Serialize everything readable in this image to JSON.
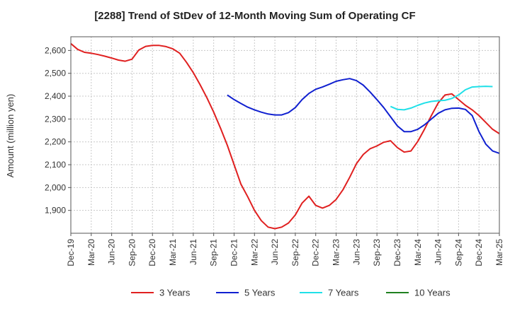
{
  "chart_data": {
    "type": "line",
    "title": "[2288]  Trend of StDev of 12-Month Moving Sum of Operating CF",
    "ylabel": "Amount (million yen)",
    "xlabel": "",
    "ylim": [
      1800,
      2660
    ],
    "yticks": [
      1900,
      2000,
      2100,
      2200,
      2300,
      2400,
      2500,
      2600
    ],
    "ytick_labels": [
      "1,900",
      "2,000",
      "2,100",
      "2,200",
      "2,300",
      "2,400",
      "2,500",
      "2,600"
    ],
    "x_start": "2019-12",
    "x_ticks": [
      "Dec-19",
      "Mar-20",
      "Jun-20",
      "Sep-20",
      "Dec-20",
      "Mar-21",
      "Jun-21",
      "Sep-21",
      "Dec-21",
      "Mar-22",
      "Jun-22",
      "Sep-22",
      "Dec-22",
      "Mar-23",
      "Jun-23",
      "Sep-23",
      "Dec-23",
      "Mar-24",
      "Jun-24",
      "Sep-24",
      "Dec-24",
      "Mar-25"
    ],
    "grid": true,
    "legend_position": "bottom",
    "series": [
      {
        "name": "3 Years",
        "color": "#e02020",
        "points": [
          [
            "2019-12",
            2630
          ],
          [
            "2020-01",
            2605
          ],
          [
            "2020-02",
            2592
          ],
          [
            "2020-03",
            2588
          ],
          [
            "2020-04",
            2582
          ],
          [
            "2020-05",
            2575
          ],
          [
            "2020-06",
            2567
          ],
          [
            "2020-07",
            2558
          ],
          [
            "2020-08",
            2553
          ],
          [
            "2020-09",
            2562
          ],
          [
            "2020-10",
            2602
          ],
          [
            "2020-11",
            2618
          ],
          [
            "2020-12",
            2622
          ],
          [
            "2021-01",
            2622
          ],
          [
            "2021-02",
            2617
          ],
          [
            "2021-03",
            2607
          ],
          [
            "2021-04",
            2588
          ],
          [
            "2021-05",
            2548
          ],
          [
            "2021-06",
            2503
          ],
          [
            "2021-07",
            2450
          ],
          [
            "2021-08",
            2393
          ],
          [
            "2021-09",
            2330
          ],
          [
            "2021-10",
            2260
          ],
          [
            "2021-11",
            2185
          ],
          [
            "2021-12",
            2100
          ],
          [
            "2022-01",
            2015
          ],
          [
            "2022-02",
            1960
          ],
          [
            "2022-03",
            1900
          ],
          [
            "2022-04",
            1855
          ],
          [
            "2022-05",
            1827
          ],
          [
            "2022-06",
            1820
          ],
          [
            "2022-07",
            1827
          ],
          [
            "2022-08",
            1845
          ],
          [
            "2022-09",
            1880
          ],
          [
            "2022-10",
            1932
          ],
          [
            "2022-11",
            1962
          ],
          [
            "2022-12",
            1922
          ],
          [
            "2023-01",
            1910
          ],
          [
            "2023-02",
            1922
          ],
          [
            "2023-03",
            1948
          ],
          [
            "2023-04",
            1990
          ],
          [
            "2023-05",
            2045
          ],
          [
            "2023-06",
            2105
          ],
          [
            "2023-07",
            2145
          ],
          [
            "2023-08",
            2170
          ],
          [
            "2023-09",
            2182
          ],
          [
            "2023-10",
            2198
          ],
          [
            "2023-11",
            2205
          ],
          [
            "2023-12",
            2175
          ],
          [
            "2024-01",
            2155
          ],
          [
            "2024-02",
            2160
          ],
          [
            "2024-03",
            2202
          ],
          [
            "2024-04",
            2256
          ],
          [
            "2024-05",
            2315
          ],
          [
            "2024-06",
            2370
          ],
          [
            "2024-07",
            2405
          ],
          [
            "2024-08",
            2410
          ],
          [
            "2024-09",
            2385
          ],
          [
            "2024-10",
            2360
          ],
          [
            "2024-11",
            2340
          ],
          [
            "2024-12",
            2315
          ],
          [
            "2025-01",
            2285
          ],
          [
            "2025-02",
            2255
          ],
          [
            "2025-03",
            2236
          ]
        ]
      },
      {
        "name": "5 Years",
        "color": "#1020d0",
        "points": [
          [
            "2021-11",
            2405
          ],
          [
            "2021-12",
            2385
          ],
          [
            "2022-01",
            2368
          ],
          [
            "2022-02",
            2352
          ],
          [
            "2022-03",
            2340
          ],
          [
            "2022-04",
            2330
          ],
          [
            "2022-05",
            2322
          ],
          [
            "2022-06",
            2318
          ],
          [
            "2022-07",
            2318
          ],
          [
            "2022-08",
            2328
          ],
          [
            "2022-09",
            2350
          ],
          [
            "2022-10",
            2385
          ],
          [
            "2022-11",
            2412
          ],
          [
            "2022-12",
            2430
          ],
          [
            "2023-01",
            2440
          ],
          [
            "2023-02",
            2452
          ],
          [
            "2023-03",
            2465
          ],
          [
            "2023-04",
            2472
          ],
          [
            "2023-05",
            2477
          ],
          [
            "2023-06",
            2468
          ],
          [
            "2023-07",
            2448
          ],
          [
            "2023-08",
            2418
          ],
          [
            "2023-09",
            2385
          ],
          [
            "2023-10",
            2350
          ],
          [
            "2023-11",
            2310
          ],
          [
            "2023-12",
            2270
          ],
          [
            "2024-01",
            2245
          ],
          [
            "2024-02",
            2245
          ],
          [
            "2024-03",
            2255
          ],
          [
            "2024-04",
            2275
          ],
          [
            "2024-05",
            2300
          ],
          [
            "2024-06",
            2325
          ],
          [
            "2024-07",
            2340
          ],
          [
            "2024-08",
            2347
          ],
          [
            "2024-09",
            2348
          ],
          [
            "2024-10",
            2342
          ],
          [
            "2024-11",
            2315
          ],
          [
            "2024-12",
            2245
          ],
          [
            "2025-01",
            2190
          ],
          [
            "2025-02",
            2160
          ],
          [
            "2025-03",
            2150
          ]
        ]
      },
      {
        "name": "7 Years",
        "color": "#20e0e8",
        "points": [
          [
            "2023-11",
            2355
          ],
          [
            "2023-12",
            2342
          ],
          [
            "2024-01",
            2340
          ],
          [
            "2024-02",
            2348
          ],
          [
            "2024-03",
            2360
          ],
          [
            "2024-04",
            2370
          ],
          [
            "2024-05",
            2377
          ],
          [
            "2024-06",
            2380
          ],
          [
            "2024-07",
            2382
          ],
          [
            "2024-08",
            2390
          ],
          [
            "2024-09",
            2405
          ],
          [
            "2024-10",
            2428
          ],
          [
            "2024-11",
            2440
          ],
          [
            "2024-12",
            2442
          ],
          [
            "2025-01",
            2443
          ],
          [
            "2025-02",
            2442
          ]
        ]
      },
      {
        "name": "10 Years",
        "color": "#208020",
        "points": []
      }
    ]
  }
}
